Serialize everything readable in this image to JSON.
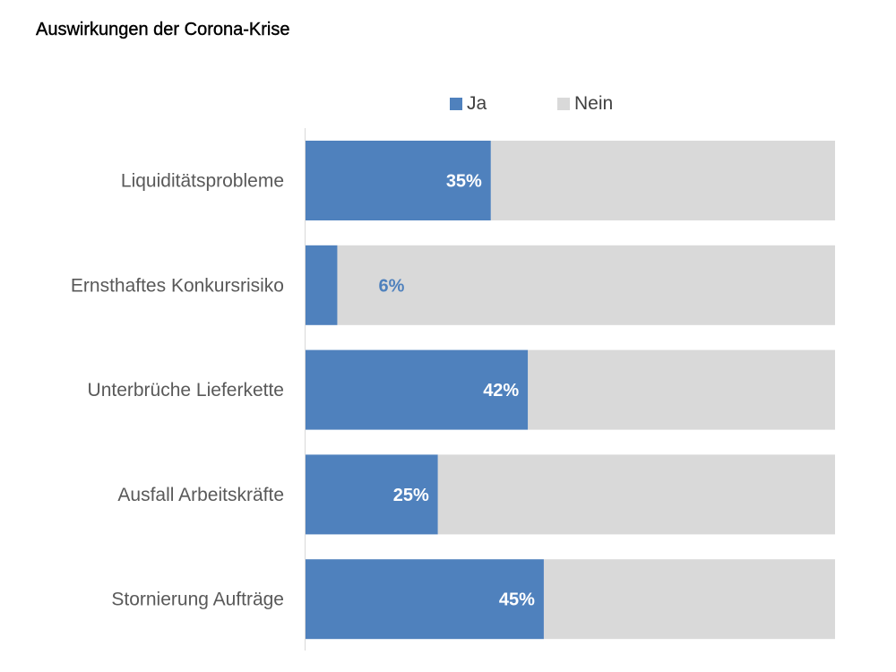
{
  "chart_data": {
    "type": "bar",
    "orientation": "horizontal",
    "stacked": true,
    "title": "Auswirkungen der Corona-Krise",
    "categories": [
      "Liquiditätsprobleme",
      "Ernsthaftes Konkursrisiko",
      "Unterbrüche Lieferkette",
      "Ausfall Arbeitskräfte",
      "Stornierung Aufträge"
    ],
    "series": [
      {
        "name": "Ja",
        "values": [
          35,
          6,
          42,
          25,
          45
        ],
        "color": "#4f81bd"
      },
      {
        "name": "Nein",
        "values": [
          65,
          94,
          58,
          75,
          55
        ],
        "color": "#d9d9d9"
      }
    ],
    "data_labels": [
      "35%",
      "6%",
      "42%",
      "25%",
      "45%"
    ],
    "xlim": [
      0,
      100
    ],
    "grid": false,
    "legend_position": "top"
  }
}
